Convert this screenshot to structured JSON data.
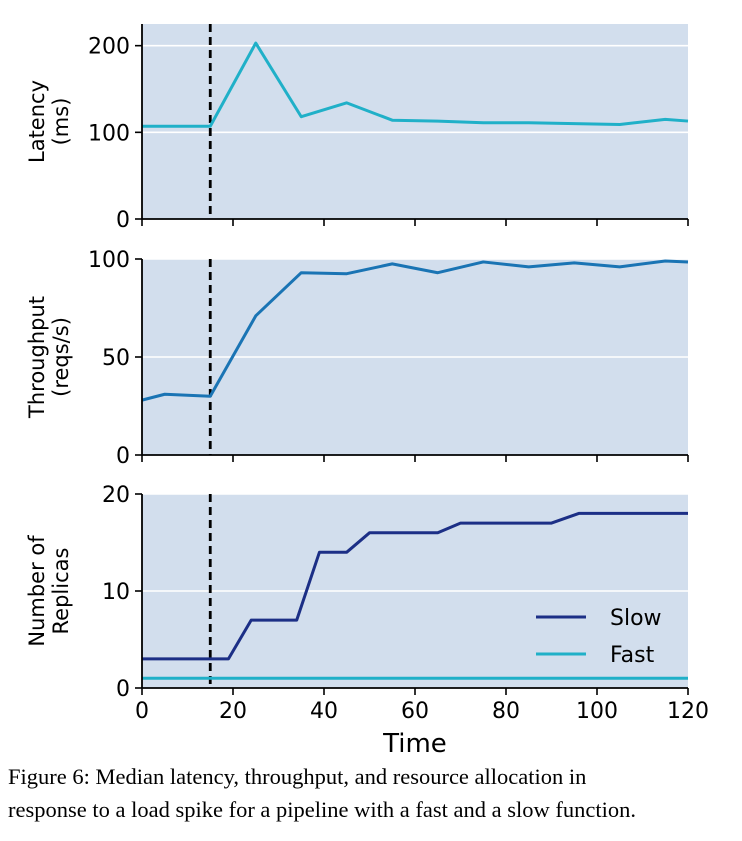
{
  "caption": {
    "label": "Figure 6:",
    "line1": "Median latency, throughput, and resource allocation in",
    "line2": "response to a load spike for a pipeline with a fast and a slow function."
  },
  "colors": {
    "background": "#d2deed",
    "grid": "#ffffff",
    "fast": "#20b0c8",
    "throughput": "#1a74b4",
    "slow": "#1c2f86",
    "marker": "#000000"
  },
  "chart_data": [
    {
      "type": "line",
      "ylabel": [
        "Latency",
        "(ms)"
      ],
      "xlabel": "",
      "xlim": [
        0,
        120
      ],
      "ylim": [
        0,
        225
      ],
      "yticks": [
        0,
        100,
        200
      ],
      "xticks": [
        0,
        20,
        40,
        60,
        80,
        100,
        120
      ],
      "show_xtick_labels": false,
      "vline_x": 15,
      "grid": true,
      "series": [
        {
          "color_key": "fast",
          "x": [
            0,
            5,
            10,
            15,
            25,
            35,
            45,
            55,
            65,
            75,
            85,
            95,
            105,
            115,
            120
          ],
          "y": [
            107,
            107,
            107,
            107,
            203,
            118,
            134,
            114,
            113,
            111,
            111,
            110,
            109,
            115,
            113
          ]
        }
      ]
    },
    {
      "type": "line",
      "ylabel": [
        "Throughput",
        "(reqs/s)"
      ],
      "xlabel": "",
      "xlim": [
        0,
        120
      ],
      "ylim": [
        0,
        100
      ],
      "yticks": [
        0,
        50,
        100
      ],
      "xticks": [
        0,
        20,
        40,
        60,
        80,
        100,
        120
      ],
      "show_xtick_labels": false,
      "vline_x": 15,
      "grid": true,
      "series": [
        {
          "color_key": "throughput",
          "x": [
            0,
            5,
            15,
            25,
            35,
            45,
            55,
            65,
            75,
            85,
            95,
            105,
            115,
            120
          ],
          "y": [
            28,
            31,
            30,
            71,
            93,
            92.5,
            97.5,
            93,
            98.5,
            96,
            98,
            96,
            99,
            98.5
          ]
        }
      ]
    },
    {
      "type": "line",
      "ylabel": [
        "Number of",
        "Replicas"
      ],
      "xlabel": "Time",
      "xlim": [
        0,
        120
      ],
      "ylim": [
        0,
        20
      ],
      "yticks": [
        0,
        10,
        20
      ],
      "xticks": [
        0,
        20,
        40,
        60,
        80,
        100,
        120
      ],
      "show_xtick_labels": true,
      "vline_x": 15,
      "grid": true,
      "legend": "lower-right",
      "series": [
        {
          "name": "Slow",
          "color_key": "slow",
          "x": [
            0,
            19,
            24,
            34,
            39,
            45,
            50,
            60,
            65,
            70,
            80,
            90,
            96,
            105,
            120
          ],
          "y": [
            3,
            3,
            7,
            7,
            14,
            14,
            16,
            16,
            16,
            17,
            17,
            17,
            18,
            18,
            18
          ]
        },
        {
          "name": "Fast",
          "color_key": "fast",
          "x": [
            0,
            120
          ],
          "y": [
            1,
            1
          ]
        }
      ]
    }
  ]
}
